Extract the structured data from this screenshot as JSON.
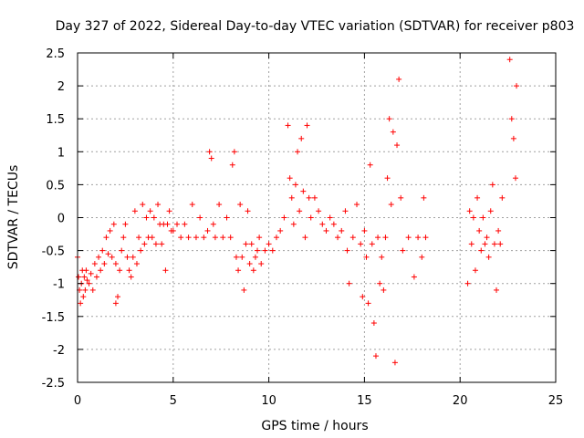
{
  "chart_data": {
    "type": "scatter",
    "title": "Day 327 of 2022, Sidereal Day-to-day VTEC variation (SDTVAR) for receiver p803",
    "xlabel": "GPS time / hours",
    "ylabel": "SDTVAR / TECUs",
    "xlim": [
      0,
      25
    ],
    "ylim": [
      -2.5,
      2.5
    ],
    "xticks": [
      0,
      5,
      10,
      15,
      20,
      25
    ],
    "xtick_labels": [
      "0",
      "5",
      "10",
      "15",
      "20",
      "25"
    ],
    "yticks": [
      -2.5,
      -2,
      -1.5,
      -1,
      -0.5,
      0,
      0.5,
      1,
      1.5,
      2,
      2.5
    ],
    "ytick_labels": [
      "-2.5",
      "-2",
      "-1.5",
      "-1",
      "-0.5",
      "0",
      "0.5",
      "1",
      "1.5",
      "2",
      "2.5"
    ],
    "grid": true,
    "marker": "+",
    "color": "#ff0000",
    "series": [
      {
        "name": "p803",
        "points": [
          [
            0.0,
            -0.6
          ],
          [
            0.05,
            -0.9
          ],
          [
            0.1,
            -1.1
          ],
          [
            0.15,
            -1.3
          ],
          [
            0.2,
            -1.0
          ],
          [
            0.25,
            -0.8
          ],
          [
            0.3,
            -1.2
          ],
          [
            0.35,
            -0.9
          ],
          [
            0.4,
            -1.1
          ],
          [
            0.45,
            -0.8
          ],
          [
            0.5,
            -0.95
          ],
          [
            0.6,
            -1.0
          ],
          [
            0.7,
            -0.85
          ],
          [
            0.8,
            -1.1
          ],
          [
            0.9,
            -0.7
          ],
          [
            1.0,
            -0.9
          ],
          [
            1.1,
            -0.6
          ],
          [
            1.2,
            -0.8
          ],
          [
            1.3,
            -0.5
          ],
          [
            1.4,
            -0.7
          ],
          [
            1.5,
            -0.3
          ],
          [
            1.6,
            -0.55
          ],
          [
            1.7,
            -0.2
          ],
          [
            1.8,
            -0.6
          ],
          [
            1.9,
            -0.1
          ],
          [
            2.0,
            -0.7
          ],
          [
            2.0,
            -1.3
          ],
          [
            2.1,
            -1.2
          ],
          [
            2.2,
            -0.8
          ],
          [
            2.3,
            -0.5
          ],
          [
            2.4,
            -0.3
          ],
          [
            2.5,
            -0.1
          ],
          [
            2.6,
            -0.6
          ],
          [
            2.7,
            -0.8
          ],
          [
            2.8,
            -0.9
          ],
          [
            2.9,
            -0.6
          ],
          [
            3.0,
            0.1
          ],
          [
            3.1,
            -0.7
          ],
          [
            3.2,
            -0.3
          ],
          [
            3.3,
            -0.5
          ],
          [
            3.4,
            0.2
          ],
          [
            3.5,
            -0.4
          ],
          [
            3.6,
            0.0
          ],
          [
            3.7,
            -0.3
          ],
          [
            3.8,
            0.1
          ],
          [
            3.9,
            -0.3
          ],
          [
            4.0,
            0.0
          ],
          [
            4.1,
            -0.4
          ],
          [
            4.2,
            0.2
          ],
          [
            4.3,
            -0.1
          ],
          [
            4.4,
            -0.4
          ],
          [
            4.5,
            -0.1
          ],
          [
            4.6,
            -0.8
          ],
          [
            4.7,
            -0.1
          ],
          [
            4.8,
            0.1
          ],
          [
            4.9,
            -0.2
          ],
          [
            5.0,
            -0.2
          ],
          [
            5.2,
            -0.1
          ],
          [
            5.4,
            -0.3
          ],
          [
            5.6,
            -0.1
          ],
          [
            5.8,
            -0.3
          ],
          [
            6.0,
            0.2
          ],
          [
            6.2,
            -0.3
          ],
          [
            6.4,
            0.0
          ],
          [
            6.6,
            -0.3
          ],
          [
            6.8,
            -0.2
          ],
          [
            6.9,
            1.0
          ],
          [
            7.0,
            0.9
          ],
          [
            7.1,
            -0.1
          ],
          [
            7.2,
            -0.3
          ],
          [
            7.4,
            0.2
          ],
          [
            7.6,
            -0.3
          ],
          [
            7.8,
            0.0
          ],
          [
            8.0,
            -0.3
          ],
          [
            8.1,
            0.8
          ],
          [
            8.2,
            1.0
          ],
          [
            8.3,
            -0.6
          ],
          [
            8.4,
            -0.8
          ],
          [
            8.5,
            0.2
          ],
          [
            8.6,
            -0.6
          ],
          [
            8.7,
            -1.1
          ],
          [
            8.8,
            -0.4
          ],
          [
            8.9,
            0.1
          ],
          [
            9.0,
            -0.7
          ],
          [
            9.1,
            -0.4
          ],
          [
            9.2,
            -0.8
          ],
          [
            9.3,
            -0.6
          ],
          [
            9.4,
            -0.5
          ],
          [
            9.5,
            -0.3
          ],
          [
            9.6,
            -0.7
          ],
          [
            9.8,
            -0.5
          ],
          [
            10.0,
            -0.4
          ],
          [
            10.2,
            -0.5
          ],
          [
            10.4,
            -0.3
          ],
          [
            10.6,
            -0.2
          ],
          [
            10.8,
            0.0
          ],
          [
            11.0,
            1.4
          ],
          [
            11.1,
            0.6
          ],
          [
            11.2,
            0.3
          ],
          [
            11.3,
            -0.1
          ],
          [
            11.4,
            0.5
          ],
          [
            11.5,
            1.0
          ],
          [
            11.6,
            0.1
          ],
          [
            11.7,
            1.2
          ],
          [
            11.8,
            0.4
          ],
          [
            11.9,
            -0.3
          ],
          [
            12.0,
            1.4
          ],
          [
            12.1,
            0.3
          ],
          [
            12.2,
            0.0
          ],
          [
            12.4,
            0.3
          ],
          [
            12.6,
            0.1
          ],
          [
            12.8,
            -0.1
          ],
          [
            13.0,
            -0.2
          ],
          [
            13.2,
            0.0
          ],
          [
            13.4,
            -0.1
          ],
          [
            13.6,
            -0.3
          ],
          [
            13.8,
            -0.2
          ],
          [
            14.0,
            0.1
          ],
          [
            14.1,
            -0.5
          ],
          [
            14.2,
            -1.0
          ],
          [
            14.4,
            -0.3
          ],
          [
            14.6,
            0.2
          ],
          [
            14.8,
            -0.4
          ],
          [
            14.9,
            -1.2
          ],
          [
            15.0,
            -0.2
          ],
          [
            15.1,
            -0.6
          ],
          [
            15.2,
            -1.3
          ],
          [
            15.3,
            0.8
          ],
          [
            15.4,
            -0.4
          ],
          [
            15.5,
            -1.6
          ],
          [
            15.6,
            -2.1
          ],
          [
            15.7,
            -0.3
          ],
          [
            15.8,
            -1.0
          ],
          [
            15.9,
            -0.6
          ],
          [
            16.0,
            -1.1
          ],
          [
            16.1,
            -0.3
          ],
          [
            16.2,
            0.6
          ],
          [
            16.3,
            1.5
          ],
          [
            16.4,
            0.2
          ],
          [
            16.5,
            1.3
          ],
          [
            16.6,
            -2.2
          ],
          [
            16.7,
            1.1
          ],
          [
            16.8,
            2.1
          ],
          [
            16.9,
            0.3
          ],
          [
            17.0,
            -0.5
          ],
          [
            17.3,
            -0.3
          ],
          [
            17.6,
            -0.9
          ],
          [
            17.8,
            -0.3
          ],
          [
            18.0,
            -0.6
          ],
          [
            18.1,
            0.3
          ],
          [
            18.2,
            -0.3
          ],
          [
            20.4,
            -1.0
          ],
          [
            20.5,
            0.1
          ],
          [
            20.6,
            -0.4
          ],
          [
            20.7,
            0.0
          ],
          [
            20.8,
            -0.8
          ],
          [
            20.9,
            0.3
          ],
          [
            21.0,
            -0.2
          ],
          [
            21.1,
            -0.5
          ],
          [
            21.2,
            0.0
          ],
          [
            21.3,
            -0.4
          ],
          [
            21.4,
            -0.3
          ],
          [
            21.5,
            -0.6
          ],
          [
            21.6,
            0.1
          ],
          [
            21.7,
            0.5
          ],
          [
            21.8,
            -0.4
          ],
          [
            21.9,
            -1.1
          ],
          [
            22.0,
            -0.2
          ],
          [
            22.1,
            -0.4
          ],
          [
            22.2,
            0.3
          ],
          [
            22.6,
            2.4
          ],
          [
            22.7,
            1.5
          ],
          [
            22.8,
            1.2
          ],
          [
            22.9,
            0.6
          ],
          [
            22.95,
            2.0
          ]
        ]
      }
    ]
  }
}
